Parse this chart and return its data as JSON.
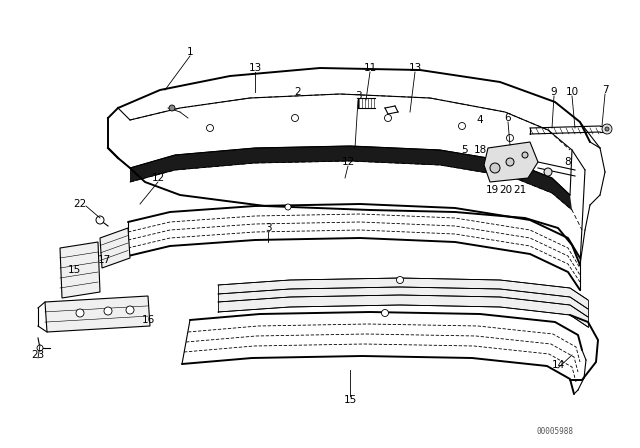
{
  "bg_color": "#ffffff",
  "watermark": "00005988",
  "fig_width": 6.4,
  "fig_height": 4.48,
  "dpi": 100
}
